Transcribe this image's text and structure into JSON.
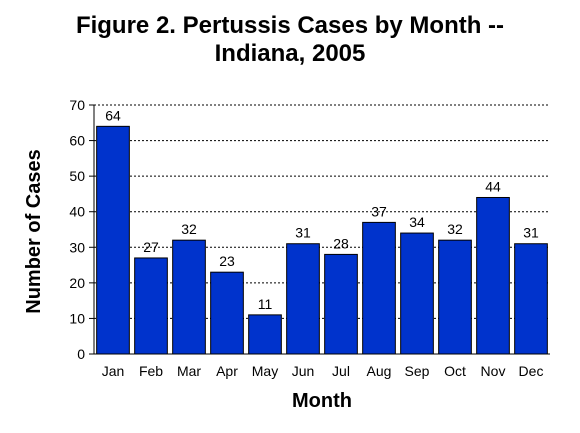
{
  "chart_data": {
    "type": "bar",
    "title_line1": "Figure 2.  Pertussis Cases by Month --",
    "title_line2": "Indiana, 2005",
    "xlabel": "Month",
    "ylabel": "Number of Cases",
    "categories": [
      "Jan",
      "Feb",
      "Mar",
      "Apr",
      "May",
      "Jun",
      "Jul",
      "Aug",
      "Sep",
      "Oct",
      "Nov",
      "Dec"
    ],
    "values": [
      64,
      27,
      32,
      23,
      11,
      31,
      28,
      37,
      34,
      32,
      44,
      31
    ],
    "ylim": [
      0,
      70
    ],
    "yticks": [
      0,
      10,
      20,
      30,
      40,
      50,
      60,
      70
    ],
    "grid": true,
    "legend": "none",
    "colors": {
      "bar": "#0033cc",
      "bar_edge": "#000000",
      "grid": "#000000"
    }
  }
}
